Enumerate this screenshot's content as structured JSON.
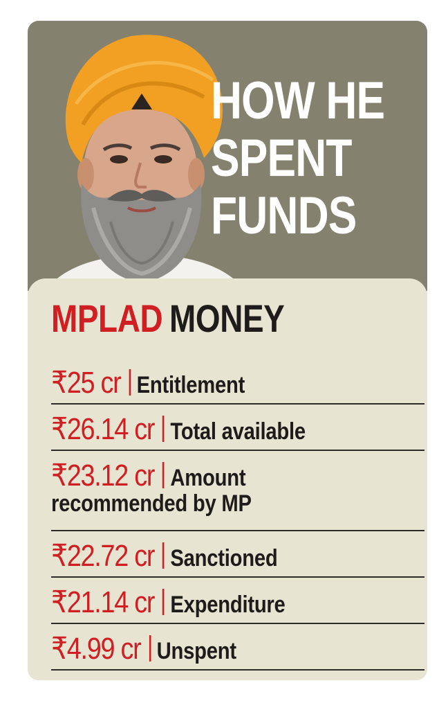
{
  "headline": [
    "HOW HE",
    "SPENT",
    "FUNDS"
  ],
  "panel_title": {
    "red": "MPLAD",
    "dark": "MONEY"
  },
  "rows": [
    {
      "amount": "₹25 cr",
      "label": "Entitlement"
    },
    {
      "amount": "₹26.14 cr",
      "label": "Total available"
    },
    {
      "amount": "₹23.12 cr",
      "label": "Amount",
      "label_cont": "recommended by MP"
    },
    {
      "amount": "₹22.72 cr",
      "label": "Sanctioned"
    },
    {
      "amount": "₹21.14 cr",
      "label": "Expenditure"
    },
    {
      "amount": "₹4.99 cr",
      "label": "Unspent"
    }
  ],
  "colors": {
    "header_bg": "#84826f",
    "panel_bg": "#e8e4d2",
    "accent_red": "#d01f22",
    "turban": "#f2a024",
    "beard": "#8c8c8c"
  },
  "icons": {
    "portrait": "sikh-man-portrait-icon"
  }
}
